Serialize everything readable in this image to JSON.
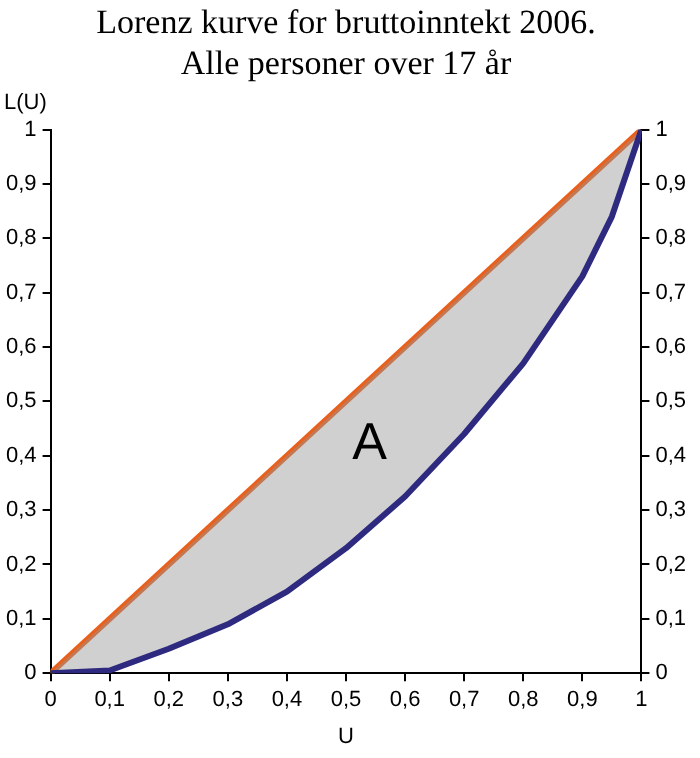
{
  "chart_data": {
    "type": "line",
    "title": "Lorenz kurve for bruttoinntekt 2006.\nAlle personer over 17 år",
    "xlabel": "U",
    "ylabel": "L(U)",
    "series": [
      {
        "color": "#e8601c",
        "x": [
          0,
          1
        ],
        "values": [
          0,
          1
        ]
      },
      {
        "color": "#2e2a80",
        "x": [
          0,
          0.1,
          0.2,
          0.3,
          0.4,
          0.5,
          0.6,
          0.7,
          0.8,
          0.9,
          0.95,
          1
        ],
        "values": [
          0,
          0.005,
          0.045,
          0.09,
          0.15,
          0.23,
          0.325,
          0.44,
          0.57,
          0.73,
          0.84,
          1
        ]
      }
    ],
    "annotations": [
      "A"
    ],
    "xlim": [
      0,
      1
    ],
    "ylim": [
      0,
      1
    ],
    "y2lim": [
      0,
      1
    ],
    "xticks": [
      0,
      {
        "value": 0.1,
        "label": "0,1"
      },
      {
        "value": 0.2,
        "label": "0,2"
      },
      {
        "value": 0.3,
        "label": "0,3"
      },
      {
        "value": 0.4,
        "label": "0,4"
      },
      {
        "value": 0.5,
        "label": "0,5"
      },
      {
        "value": 0.6,
        "label": "0,6"
      },
      {
        "value": 0.7,
        "label": "0,7"
      },
      {
        "value": 0.8,
        "label": "0,8"
      },
      {
        "value": 0.9,
        "label": "0,9"
      },
      1
    ],
    "yticks": [
      0,
      {
        "value": 0.1,
        "label": "0,1"
      },
      {
        "value": 0.2,
        "label": "0,2"
      },
      {
        "value": 0.3,
        "label": "0,3"
      },
      {
        "value": 0.4,
        "label": "0,4"
      },
      {
        "value": 0.5,
        "label": "0,5"
      },
      {
        "value": 0.6,
        "label": "0,6"
      },
      {
        "value": 0.7,
        "label": "0,7"
      },
      {
        "value": 0.8,
        "label": "0,8"
      },
      {
        "value": 0.9,
        "label": "0,9"
      },
      1
    ],
    "y2ticks": [
      0,
      {
        "value": 0.1,
        "label": "0,1"
      },
      {
        "value": 0.2,
        "label": "0,2"
      },
      {
        "value": 0.3,
        "label": "0,3"
      },
      {
        "value": 0.4,
        "label": "0,4"
      },
      {
        "value": 0.5,
        "label": "0,5"
      },
      {
        "value": 0.6,
        "label": "0,6"
      },
      {
        "value": 0.7,
        "label": "0,7"
      },
      {
        "value": 0.8,
        "label": "0,8"
      },
      {
        "value": 0.9,
        "label": "0,9"
      },
      1
    ],
    "grid": false,
    "legend": false,
    "marker": "none",
    "line_style": "solid"
  }
}
